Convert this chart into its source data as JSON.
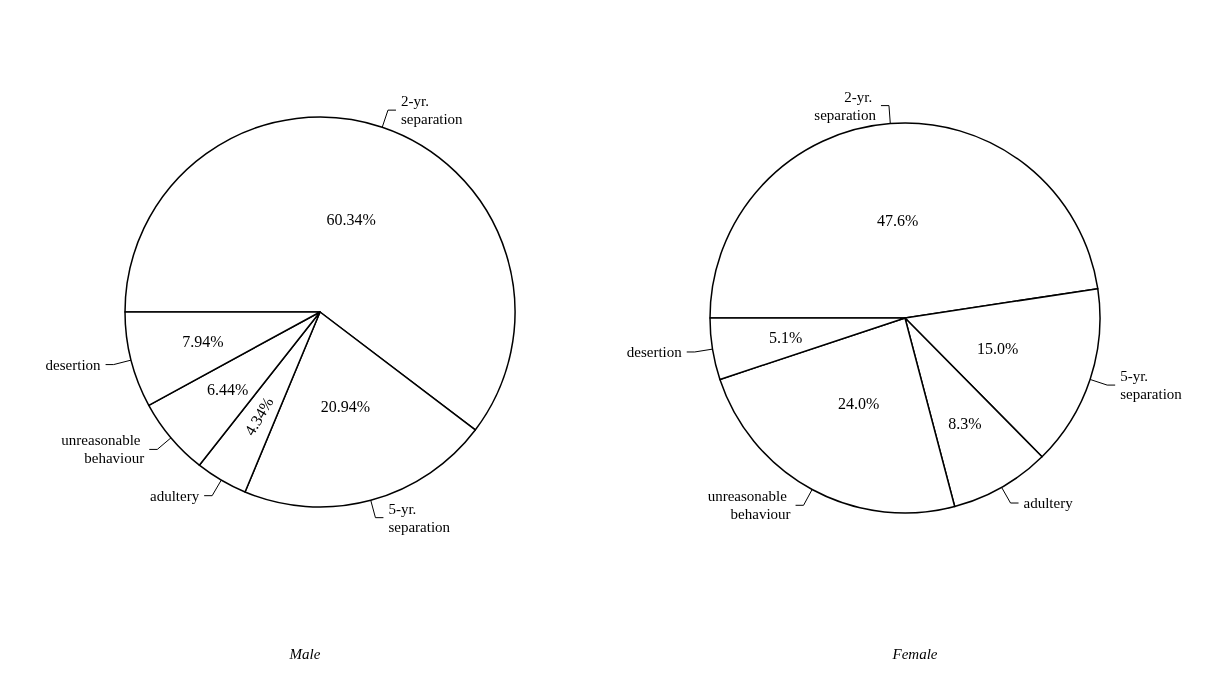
{
  "chart_data": [
    {
      "type": "pie",
      "title": "Male",
      "categories": [
        "2-yr. separation",
        "5-yr. separation",
        "adultery",
        "unreasonable behaviour",
        "desertion"
      ],
      "values": [
        60.34,
        20.94,
        4.34,
        6.44,
        7.94
      ],
      "colors": [
        "#ffffff",
        "#ffffff",
        "#ffffff",
        "#ffffff",
        "#ffffff"
      ],
      "value_labels": [
        "60.34%",
        "20.94%",
        "4.34%",
        "6.44%",
        "7.94%"
      ]
    },
    {
      "type": "pie",
      "title": "Female",
      "categories": [
        "2-yr. separation",
        "5-yr. separation",
        "adultery",
        "unreasonable behaviour",
        "desertion"
      ],
      "values": [
        47.6,
        15.0,
        8.3,
        24.0,
        5.1
      ],
      "colors": [
        "#ffffff",
        "#ffffff",
        "#ffffff",
        "#ffffff",
        "#ffffff"
      ],
      "value_labels": [
        "47.6%",
        "15.0%",
        "8.3%",
        "24.0%",
        "5.1%"
      ]
    }
  ]
}
